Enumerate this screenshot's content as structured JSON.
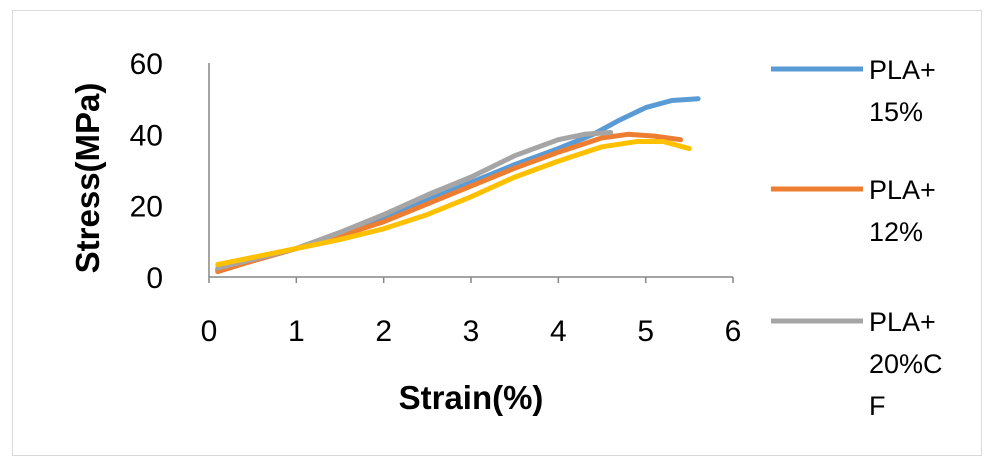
{
  "chart_data": {
    "type": "line",
    "title": "",
    "xlabel": "Strain(%)",
    "ylabel": "Stress(MPa)",
    "xlim": [
      0,
      6
    ],
    "ylim": [
      0,
      60
    ],
    "xticks": [
      "0",
      "1",
      "2",
      "3",
      "4",
      "5",
      "6"
    ],
    "yticks": [
      "0",
      "20",
      "40",
      "60"
    ],
    "grid": false,
    "legend_position": "right",
    "series": [
      {
        "name": "PLA+ 15%",
        "legend_lines": [
          "PLA+",
          "15%"
        ],
        "color": "#5b9bd5",
        "x": [
          0.1,
          0.5,
          1.0,
          1.5,
          2.0,
          2.5,
          3.0,
          3.5,
          4.0,
          4.4,
          4.7,
          5.0,
          5.3,
          5.6
        ],
        "y": [
          2,
          4.5,
          8,
          12,
          16.5,
          21.5,
          26.5,
          31.5,
          36,
          40,
          44,
          47.5,
          49.5,
          50
        ]
      },
      {
        "name": "PLA+ 12%",
        "legend_lines": [
          "PLA+",
          "12%"
        ],
        "color": "#ed7d31",
        "x": [
          0.1,
          0.5,
          1.0,
          1.5,
          2.0,
          2.5,
          3.0,
          3.5,
          4.0,
          4.5,
          4.8,
          5.1,
          5.4
        ],
        "y": [
          1.5,
          4.5,
          8,
          11.5,
          15.5,
          20.5,
          25.5,
          30.5,
          35,
          39,
          40,
          39.5,
          38.5
        ]
      },
      {
        "name": "PLA+ 20%CF",
        "legend_lines": [
          "PLA+",
          "20%C",
          "F"
        ],
        "color": "#a5a5a5",
        "x": [
          0.1,
          0.5,
          1.0,
          1.5,
          2.0,
          2.5,
          3.0,
          3.5,
          4.0,
          4.3,
          4.6
        ],
        "y": [
          2.5,
          5,
          8,
          12.5,
          17.5,
          23,
          28,
          34,
          38.5,
          40,
          40.5
        ]
      },
      {
        "name": "",
        "legend_lines": [],
        "color": "#ffc000",
        "x": [
          0.1,
          0.5,
          1.0,
          1.5,
          2.0,
          2.5,
          3.0,
          3.5,
          4.0,
          4.5,
          4.9,
          5.2,
          5.5
        ],
        "y": [
          3.5,
          5.5,
          8,
          10.5,
          13.5,
          17.5,
          22.5,
          28,
          32.5,
          36.5,
          38,
          38,
          36
        ]
      }
    ]
  }
}
